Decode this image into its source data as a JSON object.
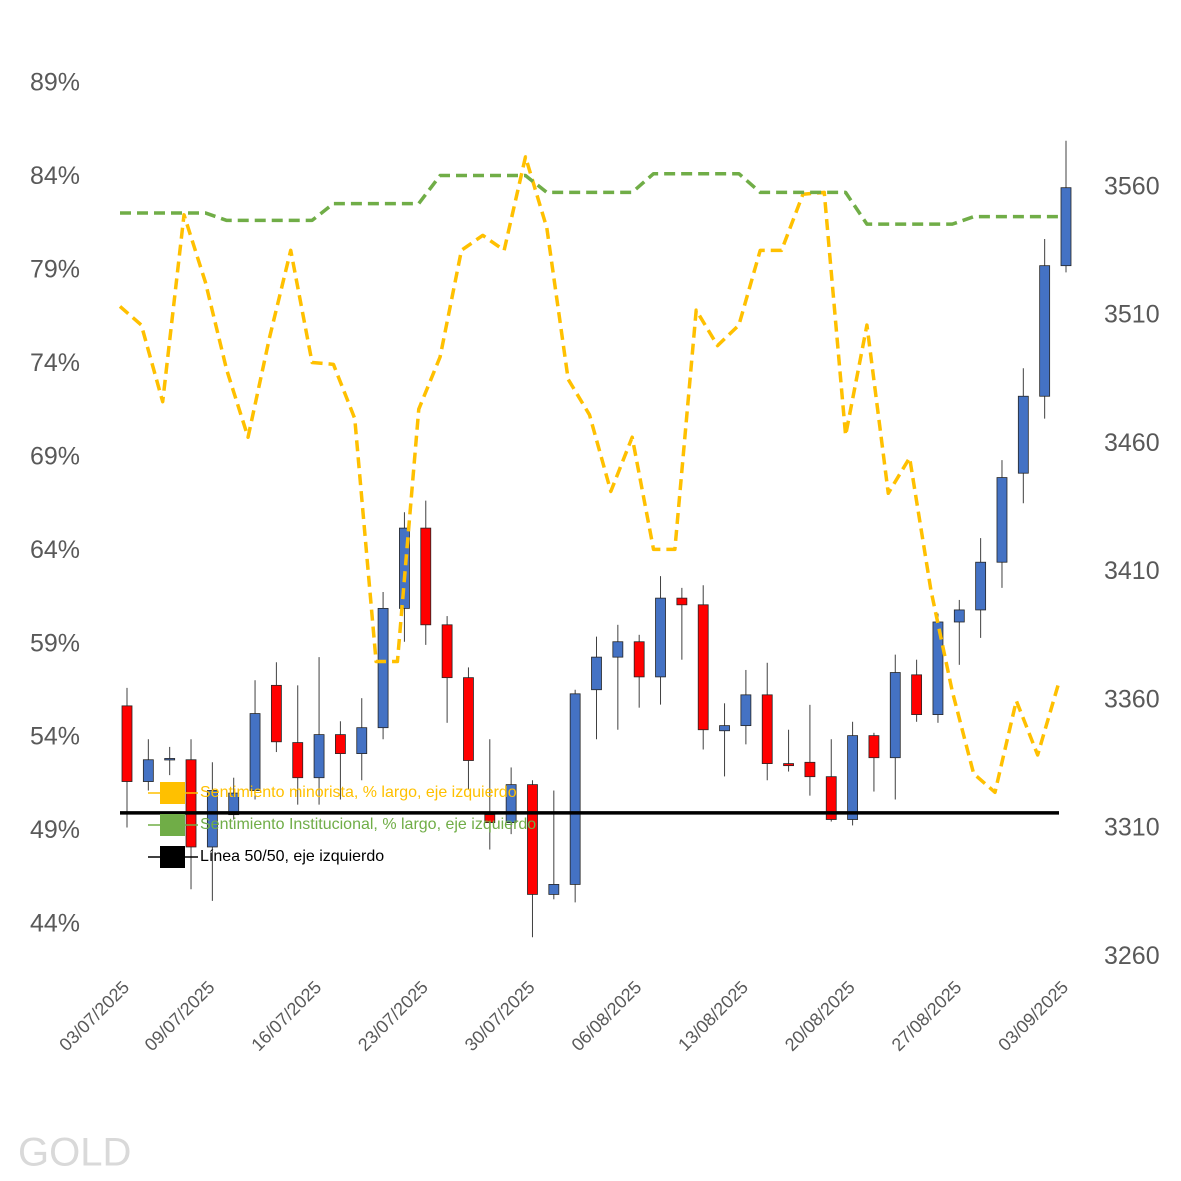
{
  "chart_data": {
    "type": "candlestick",
    "watermark": "GOLD",
    "categories": [
      "03/07/2025",
      null,
      null,
      null,
      "09/07/2025",
      null,
      null,
      null,
      null,
      "16/07/2025",
      null,
      null,
      null,
      null,
      "23/07/2025",
      null,
      null,
      null,
      null,
      "30/07/2025",
      null,
      null,
      null,
      null,
      "06/08/2025",
      null,
      null,
      null,
      null,
      "13/08/2025",
      null,
      null,
      null,
      null,
      "20/08/2025",
      null,
      null,
      null,
      null,
      "27/08/2025",
      null,
      null,
      null,
      null,
      "03/09/2025"
    ],
    "ylim": [
      42,
      91
    ],
    "yticks": [
      {
        "value": 44,
        "label": "44%"
      },
      {
        "value": 49,
        "label": "49%"
      },
      {
        "value": 54,
        "label": "54%"
      },
      {
        "value": 59,
        "label": "59%"
      },
      {
        "value": 64,
        "label": "64%"
      },
      {
        "value": 69,
        "label": "69%"
      },
      {
        "value": 74,
        "label": "74%"
      },
      {
        "value": 79,
        "label": "79%"
      },
      {
        "value": 84,
        "label": "84%"
      },
      {
        "value": 89,
        "label": "89%"
      }
    ],
    "y2lim": [
      3258,
      3615
    ],
    "y2ticks": [
      3260,
      3310,
      3360,
      3410,
      3460,
      3510,
      3560
    ],
    "grid": false,
    "candles": {
      "axis": "y2",
      "up_color": "#4472c4",
      "down_color": "#ff0000",
      "open": [
        3358,
        3328.5,
        3337,
        3337,
        3303,
        3315.6,
        3325,
        3366,
        3343.7,
        3330,
        3346.8,
        3339.4,
        3349.5,
        3396,
        3427.3,
        3389.6,
        3369,
        3315.6,
        3312.5,
        3327.3,
        3284.5,
        3288.4,
        3364.3,
        3377,
        3383,
        3369.3,
        3400,
        3397.4,
        3348.3,
        3350.3,
        3362.3,
        3335.5,
        3336,
        3330.4,
        3313.7,
        3346.4,
        3337.8,
        3370.1,
        3354.6,
        3390.7,
        3395.4,
        3414,
        3448.7,
        3478.7,
        3529.6
      ],
      "high": [
        3365,
        3345,
        3342,
        3345,
        3336,
        3330,
        3368,
        3375,
        3366,
        3377,
        3352,
        3361,
        3402.4,
        3433.5,
        3438,
        3393,
        3373,
        3345,
        3334,
        3329,
        3325,
        3364.3,
        3385,
        3389.6,
        3385.7,
        3408.6,
        3404,
        3405,
        3359,
        3372,
        3374.8,
        3348.7,
        3358.4,
        3345,
        3351.8,
        3347.5,
        3378,
        3376,
        3394,
        3399.3,
        3423.4,
        3453.8,
        3489.6,
        3540,
        3578.3
      ],
      "low": [
        3310.6,
        3325,
        3331,
        3286.5,
        3282,
        3313.7,
        3321.5,
        3340,
        3319.5,
        3319.5,
        3321.5,
        3329,
        3345,
        3383,
        3381.8,
        3351.4,
        3325.4,
        3302,
        3308,
        3267.8,
        3282.6,
        3281.4,
        3345,
        3348.7,
        3357.3,
        3358.5,
        3376,
        3341,
        3330.5,
        3343,
        3329,
        3332.4,
        3323,
        3312.9,
        3311.4,
        3324.6,
        3321.5,
        3351.8,
        3351.4,
        3374,
        3384.5,
        3404,
        3437,
        3470,
        3527
      ],
      "close": [
        3328.5,
        3337,
        3337.5,
        3303,
        3325,
        3324,
        3355,
        3344,
        3330,
        3346.8,
        3339.4,
        3349.5,
        3396,
        3427.3,
        3389.6,
        3369,
        3336.7,
        3312.5,
        3327.3,
        3284.5,
        3288.4,
        3362.7,
        3377,
        3383,
        3369.3,
        3400,
        3397.4,
        3348.7,
        3350.3,
        3362.3,
        3335.5,
        3334.7,
        3330.4,
        3313.7,
        3346.4,
        3337.8,
        3371,
        3354.6,
        3390.7,
        3395.4,
        3414,
        3447,
        3478.7,
        3529.6,
        3560
      ]
    },
    "series": [
      {
        "name": "Sentimiento minorista, % largo, eje izquierdo",
        "color": "#ffc000",
        "style": "dashed",
        "values": [
          77.1,
          76.1,
          72.0,
          82.0,
          78.4,
          73.7,
          70.1,
          75.4,
          80.1,
          74.1,
          74.0,
          71.1,
          58.1,
          58.1,
          71.6,
          74.4,
          80.1,
          80.9,
          80.1,
          85.1,
          81.3,
          73.2,
          71.3,
          67.2,
          70.1,
          64.1,
          64.1,
          76.9,
          75.0,
          76.1,
          80.1,
          80.1,
          83.1,
          83.2,
          70.2,
          76.1,
          67.1,
          69.0,
          61.9,
          56.5,
          52.1,
          51.1,
          56.0,
          53.1,
          57.0
        ]
      },
      {
        "name": "Sentimiento Institucional, % largo, eje izquierdo",
        "color": "#70ad47",
        "style": "dashed",
        "values": [
          82.1,
          82.1,
          82.1,
          82.1,
          82.1,
          81.7,
          81.7,
          81.7,
          81.7,
          81.7,
          82.6,
          82.6,
          82.6,
          82.6,
          82.6,
          84.1,
          84.1,
          84.1,
          84.1,
          84.1,
          83.2,
          83.2,
          83.2,
          83.2,
          83.2,
          84.2,
          84.2,
          84.2,
          84.2,
          84.2,
          83.2,
          83.2,
          83.2,
          83.2,
          83.2,
          81.5,
          81.5,
          81.5,
          81.5,
          81.5,
          81.9,
          81.9,
          81.9,
          81.9,
          81.9
        ]
      },
      {
        "name": "Línea 50/50, eje izquierdo",
        "color": "#000000",
        "style": "solid",
        "values": [
          50,
          50,
          50,
          50,
          50,
          50,
          50,
          50,
          50,
          50,
          50,
          50,
          50,
          50,
          50,
          50,
          50,
          50,
          50,
          50,
          50,
          50,
          50,
          50,
          50,
          50,
          50,
          50,
          50,
          50,
          50,
          50,
          50,
          50,
          50,
          50,
          50,
          50,
          50,
          50,
          50,
          50,
          50,
          50,
          50
        ]
      }
    ]
  }
}
